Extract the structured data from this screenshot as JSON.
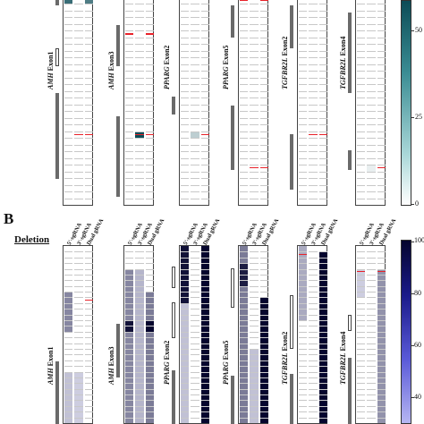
{
  "panel_b": {
    "letter": "B",
    "row_title": "Deletion"
  },
  "genes": [
    {
      "gene": "AMH",
      "exon": " Exon1"
    },
    {
      "gene": "AMH",
      "exon": " Exon3"
    },
    {
      "gene": "PPARG",
      "exon": " Exon2"
    },
    {
      "gene": "PPARG",
      "exon": " Exon5"
    },
    {
      "gene": "TGFBR2L",
      "exon": " Exon2"
    },
    {
      "gene": "TGFBR2L",
      "exon": " Exon4"
    }
  ],
  "column_labels": [
    "5'-sgRNA",
    "3'-sgRNA",
    "Dual gRNA"
  ],
  "colorbars": {
    "top": {
      "color_low": "#ffffff",
      "color_high": "#0d4c57",
      "ticks": [
        "50",
        "25",
        "0"
      ]
    },
    "bottom": {
      "color_low": "#ffffff",
      "color_high": "#05052e",
      "ticks": [
        "100",
        "80",
        "60",
        "40"
      ]
    }
  },
  "chart_data": [
    {
      "type": "heatmap",
      "title": "",
      "colorbar_ticks": [
        0,
        25,
        50
      ],
      "groups": [
        {
          "name": "AMH Exon1",
          "series": [
            {
              "name": "5'-sgRNA",
              "hits": [
                {
                  "row": 0,
                  "value": 45
                }
              ]
            },
            {
              "name": "3'-sgRNA",
              "hits": [
                {
                  "row": 20,
                  "value": 0,
                  "highlight": "red"
                }
              ]
            },
            {
              "name": "Dual gRNA",
              "hits": [
                {
                  "row": 0,
                  "value": 40
                },
                {
                  "row": 20,
                  "value": 0,
                  "highlight": "red"
                }
              ]
            }
          ]
        },
        {
          "name": "AMH Exon3",
          "series": [
            {
              "name": "5'-sgRNA",
              "hits": [
                {
                  "row": 5,
                  "value": 0,
                  "highlight": "red"
                }
              ]
            },
            {
              "name": "3'-sgRNA",
              "hits": [
                {
                  "row": 20,
                  "value": 55,
                  "highlight": "red"
                }
              ]
            },
            {
              "name": "Dual gRNA",
              "hits": [
                {
                  "row": 5,
                  "value": 0,
                  "highlight": "red"
                },
                {
                  "row": 20,
                  "value": 0,
                  "highlight": "red"
                }
              ]
            }
          ]
        },
        {
          "name": "PPARG Exon2",
          "series": [
            {
              "name": "5'-sgRNA",
              "hits": []
            },
            {
              "name": "3'-sgRNA",
              "hits": [
                {
                  "row": 20,
                  "value": 15
                }
              ]
            },
            {
              "name": "Dual gRNA",
              "hits": [
                {
                  "row": 20,
                  "value": 0,
                  "highlight": "red"
                }
              ]
            }
          ]
        },
        {
          "name": "PPARG Exon5",
          "series": [
            {
              "name": "5'-sgRNA",
              "hits": [
                {
                  "row": 0,
                  "value": 0,
                  "highlight": "red"
                }
              ]
            },
            {
              "name": "3'-sgRNA",
              "hits": [
                {
                  "row": 25,
                  "value": 0,
                  "highlight": "red"
                }
              ]
            },
            {
              "name": "Dual gRNA",
              "hits": [
                {
                  "row": 0,
                  "value": 0,
                  "highlight": "red"
                },
                {
                  "row": 25,
                  "value": 0,
                  "highlight": "red"
                }
              ]
            }
          ]
        },
        {
          "name": "TGFBR2L Exon2",
          "series": [
            {
              "name": "5'-sgRNA",
              "hits": []
            },
            {
              "name": "3'-sgRNA",
              "hits": [
                {
                  "row": 20,
                  "value": 0,
                  "highlight": "red"
                }
              ]
            },
            {
              "name": "Dual gRNA",
              "hits": [
                {
                  "row": 20,
                  "value": 0,
                  "highlight": "red"
                }
              ]
            }
          ]
        },
        {
          "name": "TGFBR2L Exon4",
          "series": [
            {
              "name": "5'-sgRNA",
              "hits": []
            },
            {
              "name": "3'-sgRNA",
              "hits": [
                {
                  "row": 25,
                  "value": 5
                }
              ]
            },
            {
              "name": "Dual gRNA",
              "hits": [
                {
                  "row": 25,
                  "value": 0,
                  "highlight": "red"
                }
              ]
            }
          ]
        }
      ]
    },
    {
      "type": "heatmap",
      "title": "Deletion",
      "colorbar_ticks": [
        40,
        60,
        80,
        100
      ],
      "groups": [
        {
          "name": "AMH Exon1",
          "series": [
            {
              "name": "5'-sgRNA",
              "ranges": [
                {
                  "from": 8,
                  "to": 14,
                  "value": 45
                },
                {
                  "from": 22,
                  "to": 30,
                  "value": 20
                }
              ]
            },
            {
              "name": "3'-sgRNA",
              "ranges": [
                {
                  "from": 22,
                  "to": 30,
                  "value": 15
                }
              ]
            },
            {
              "name": "Dual gRNA",
              "ranges": [
                {
                  "from": 9,
                  "to": 9,
                  "value": 0,
                  "highlight": "red"
                }
              ]
            }
          ]
        },
        {
          "name": "AMH Exon3",
          "series": [
            {
              "name": "5'-sgRNA",
              "ranges": [
                {
                  "from": 4,
                  "to": 30,
                  "value": 45
                },
                {
                  "from": 13,
                  "to": 14,
                  "value": 95
                }
              ]
            },
            {
              "name": "3'-sgRNA",
              "ranges": [
                {
                  "from": 4,
                  "to": 30,
                  "value": 25
                }
              ]
            },
            {
              "name": "Dual gRNA",
              "ranges": [
                {
                  "from": 8,
                  "to": 30,
                  "value": 50
                },
                {
                  "from": 13,
                  "to": 14,
                  "value": 100
                }
              ]
            }
          ]
        },
        {
          "name": "PPARG Exon2",
          "series": [
            {
              "name": "5'-sgRNA",
              "ranges": [
                {
                  "from": 0,
                  "to": 10,
                  "value": 95
                },
                {
                  "from": 10,
                  "to": 30,
                  "value": 20
                }
              ]
            },
            {
              "name": "3'-sgRNA",
              "ranges": []
            },
            {
              "name": "Dual gRNA",
              "ranges": [
                {
                  "from": 0,
                  "to": 30,
                  "value": 100
                }
              ]
            }
          ]
        },
        {
          "name": "PPARG Exon5",
          "series": [
            {
              "name": "5'-sgRNA",
              "ranges": [
                {
                  "from": 0,
                  "to": 30,
                  "value": 50
                },
                {
                  "from": 3,
                  "to": 6,
                  "value": 90
                }
              ]
            },
            {
              "name": "3'-sgRNA",
              "ranges": [
                {
                  "from": 18,
                  "to": 30,
                  "value": 20
                }
              ]
            },
            {
              "name": "Dual gRNA",
              "ranges": [
                {
                  "from": 9,
                  "to": 30,
                  "value": 100
                }
              ]
            }
          ]
        },
        {
          "name": "TGFBR2L Exon2",
          "series": [
            {
              "name": "5'-sgRNA",
              "ranges": [
                {
                  "from": 0,
                  "to": 12,
                  "value": 30
                },
                {
                  "from": 1,
                  "to": 1,
                  "value": 0,
                  "highlight": "red"
                }
              ]
            },
            {
              "name": "3'-sgRNA",
              "ranges": []
            },
            {
              "name": "Dual gRNA",
              "ranges": [
                {
                  "from": 1,
                  "to": 30,
                  "value": 100
                }
              ]
            }
          ]
        },
        {
          "name": "TGFBR2L Exon4",
          "series": [
            {
              "name": "5'-sgRNA",
              "ranges": [
                {
                  "from": 4,
                  "to": 8,
                  "value": 15
                },
                {
                  "from": 4,
                  "to": 4,
                  "value": 0,
                  "highlight": "red"
                }
              ]
            },
            {
              "name": "3'-sgRNA",
              "ranges": []
            },
            {
              "name": "Dual gRNA",
              "ranges": [
                {
                  "from": 4,
                  "to": 30,
                  "value": 40
                },
                {
                  "from": 4,
                  "to": 4,
                  "value": 0,
                  "highlight": "red"
                }
              ]
            }
          ]
        }
      ]
    }
  ]
}
